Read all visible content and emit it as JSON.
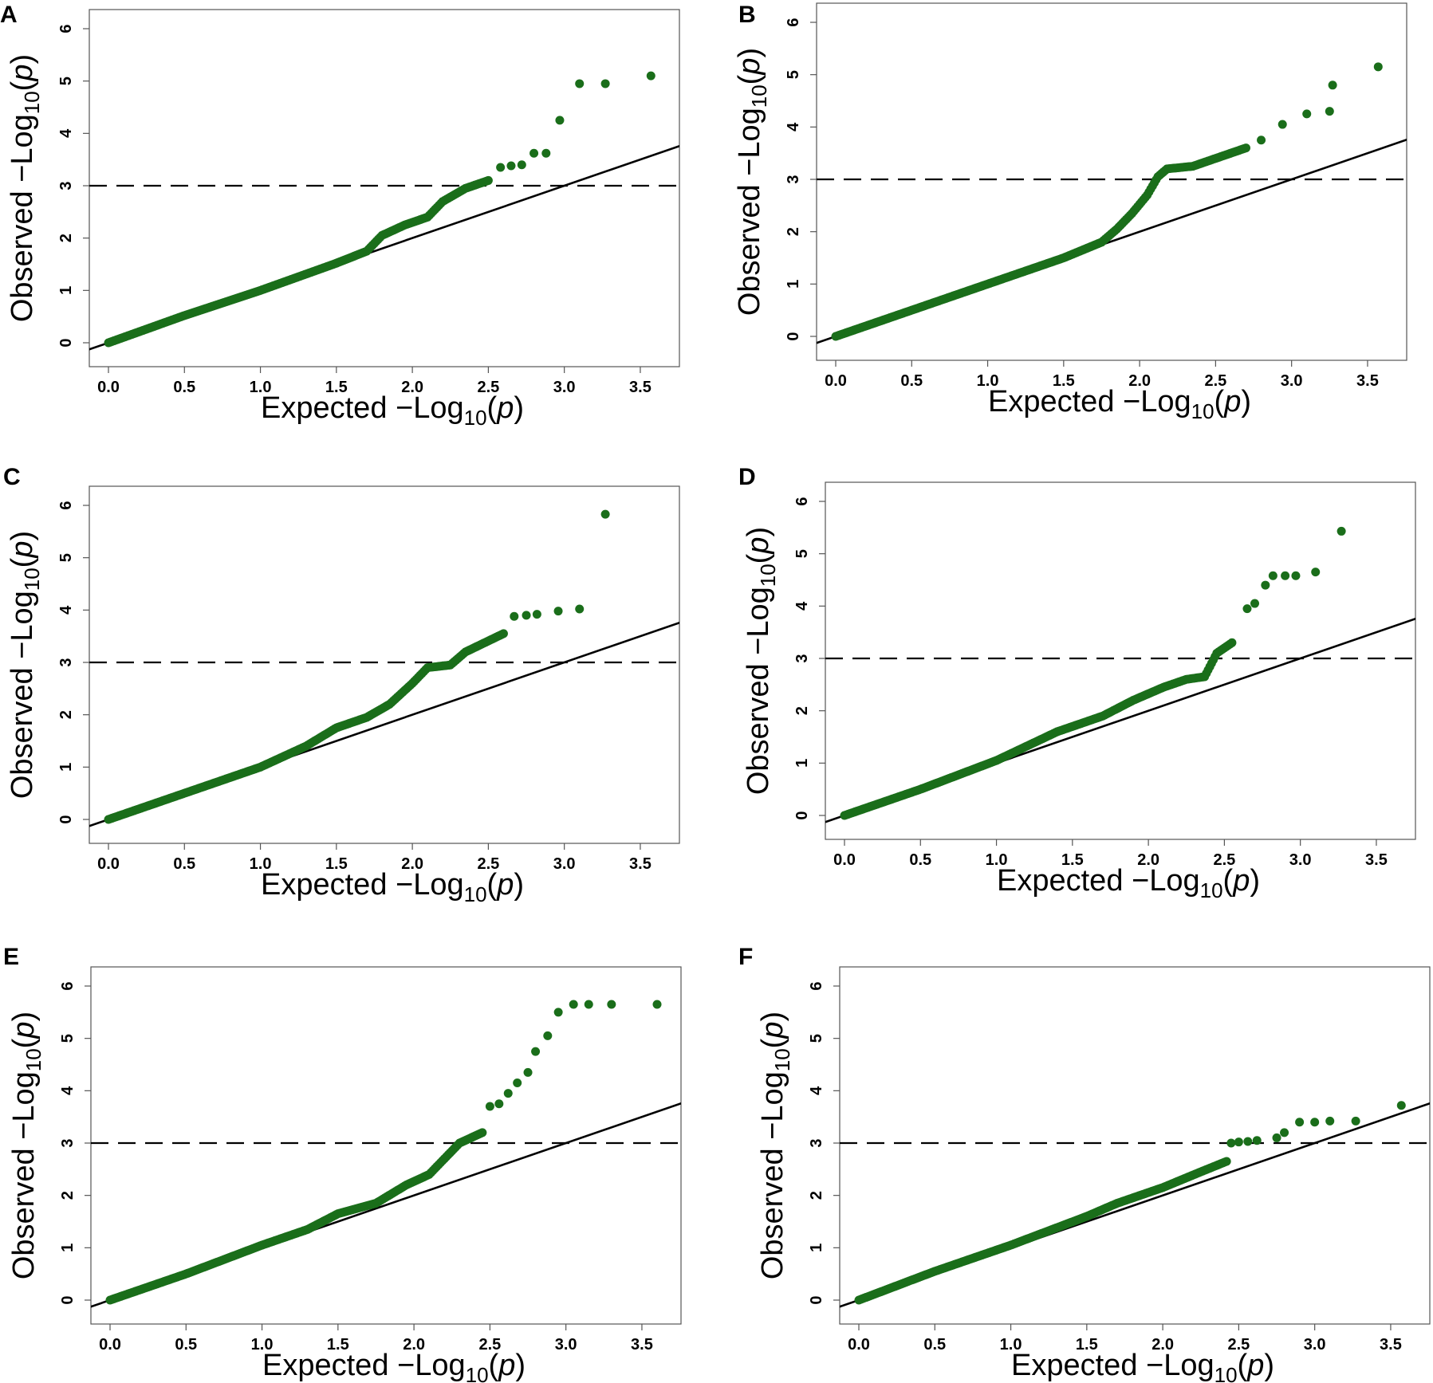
{
  "chart_data": [
    {
      "panel": "A",
      "type": "scatter",
      "xlabel": "Expected",
      "ylabel": "Observed",
      "log_label": "−Log",
      "log_sub": "10",
      "p_symbol": "p",
      "xlim": [
        0,
        3.6
      ],
      "ylim": [
        0,
        6
      ],
      "xticks": [
        "0.0",
        "0.5",
        "1.0",
        "1.5",
        "2.0",
        "2.5",
        "3.0",
        "3.5"
      ],
      "yticks": [
        "0",
        "1",
        "2",
        "3",
        "4",
        "5",
        "6"
      ],
      "threshold": 3,
      "curve": [
        [
          0,
          0
        ],
        [
          0.5,
          0.52
        ],
        [
          1,
          1
        ],
        [
          1.5,
          1.52
        ],
        [
          1.7,
          1.75
        ],
        [
          1.8,
          2.05
        ],
        [
          1.95,
          2.25
        ],
        [
          2.1,
          2.4
        ],
        [
          2.2,
          2.7
        ],
        [
          2.35,
          2.95
        ],
        [
          2.5,
          3.1
        ]
      ],
      "outliers": [
        [
          2.58,
          3.35
        ],
        [
          2.65,
          3.38
        ],
        [
          2.72,
          3.4
        ],
        [
          2.8,
          3.62
        ],
        [
          2.88,
          3.62
        ],
        [
          2.97,
          4.25
        ],
        [
          3.1,
          4.95
        ],
        [
          3.27,
          4.95
        ],
        [
          3.57,
          5.1
        ]
      ]
    },
    {
      "panel": "B",
      "type": "scatter",
      "xlabel": "Expected",
      "ylabel": "Observed",
      "log_label": "−Log",
      "log_sub": "10",
      "p_symbol": "p",
      "xlim": [
        0,
        3.6
      ],
      "ylim": [
        0,
        6
      ],
      "xticks": [
        "0.0",
        "0.5",
        "1.0",
        "1.5",
        "2.0",
        "2.5",
        "3.0",
        "3.5"
      ],
      "yticks": [
        "0",
        "1",
        "2",
        "3",
        "4",
        "5",
        "6"
      ],
      "threshold": 3,
      "curve": [
        [
          0,
          0
        ],
        [
          0.5,
          0.5
        ],
        [
          1,
          1
        ],
        [
          1.5,
          1.5
        ],
        [
          1.75,
          1.8
        ],
        [
          1.85,
          2.05
        ],
        [
          1.95,
          2.35
        ],
        [
          2.05,
          2.7
        ],
        [
          2.12,
          3.05
        ],
        [
          2.18,
          3.2
        ],
        [
          2.35,
          3.25
        ],
        [
          2.5,
          3.4
        ],
        [
          2.7,
          3.6
        ]
      ],
      "outliers": [
        [
          2.8,
          3.75
        ],
        [
          2.94,
          4.05
        ],
        [
          3.1,
          4.25
        ],
        [
          3.25,
          4.3
        ],
        [
          3.27,
          4.8
        ],
        [
          3.57,
          5.15
        ]
      ]
    },
    {
      "panel": "C",
      "type": "scatter",
      "xlabel": "Expected",
      "ylabel": "Observed",
      "log_label": "−Log",
      "log_sub": "10",
      "p_symbol": "p",
      "xlim": [
        0,
        3.6
      ],
      "ylim": [
        0,
        6
      ],
      "xticks": [
        "0.0",
        "0.5",
        "1.0",
        "1.5",
        "2.0",
        "2.5",
        "3.0",
        "3.5"
      ],
      "yticks": [
        "0",
        "1",
        "2",
        "3",
        "4",
        "5",
        "6"
      ],
      "threshold": 3,
      "curve": [
        [
          0,
          0
        ],
        [
          0.5,
          0.5
        ],
        [
          1,
          1
        ],
        [
          1.3,
          1.4
        ],
        [
          1.5,
          1.75
        ],
        [
          1.7,
          1.95
        ],
        [
          1.85,
          2.2
        ],
        [
          2,
          2.6
        ],
        [
          2.1,
          2.9
        ],
        [
          2.25,
          2.95
        ],
        [
          2.35,
          3.2
        ],
        [
          2.6,
          3.55
        ]
      ],
      "outliers": [
        [
          2.67,
          3.88
        ],
        [
          2.75,
          3.9
        ],
        [
          2.82,
          3.92
        ],
        [
          2.96,
          3.98
        ],
        [
          3.1,
          4.02
        ],
        [
          3.27,
          5.83
        ]
      ]
    },
    {
      "panel": "D",
      "type": "scatter",
      "xlabel": "Expected",
      "ylabel": "Observed",
      "log_label": "−Log",
      "log_sub": "10",
      "p_symbol": "p",
      "xlim": [
        0,
        3.6
      ],
      "ylim": [
        0,
        6
      ],
      "xticks": [
        "0.0",
        "0.5",
        "1.0",
        "1.5",
        "2.0",
        "2.5",
        "3.0",
        "3.5"
      ],
      "yticks": [
        "0",
        "1",
        "2",
        "3",
        "4",
        "5",
        "6"
      ],
      "threshold": 3,
      "curve": [
        [
          0,
          0
        ],
        [
          0.5,
          0.5
        ],
        [
          1,
          1.05
        ],
        [
          1.4,
          1.6
        ],
        [
          1.7,
          1.9
        ],
        [
          1.9,
          2.2
        ],
        [
          2.1,
          2.45
        ],
        [
          2.25,
          2.6
        ],
        [
          2.37,
          2.65
        ],
        [
          2.45,
          3.1
        ],
        [
          2.55,
          3.3
        ]
      ],
      "outliers": [
        [
          2.65,
          3.95
        ],
        [
          2.7,
          4.05
        ],
        [
          2.77,
          4.4
        ],
        [
          2.82,
          4.58
        ],
        [
          2.9,
          4.58
        ],
        [
          2.97,
          4.58
        ],
        [
          3.1,
          4.65
        ],
        [
          3.27,
          5.43
        ]
      ]
    },
    {
      "panel": "E",
      "type": "scatter",
      "xlabel": "Expected",
      "ylabel": "Observed",
      "log_label": "−Log",
      "log_sub": "10",
      "p_symbol": "p",
      "xlim": [
        0,
        3.6
      ],
      "ylim": [
        0,
        6
      ],
      "xticks": [
        "0.0",
        "0.5",
        "1.0",
        "1.5",
        "2.0",
        "2.5",
        "3.0",
        "3.5"
      ],
      "yticks": [
        "0",
        "1",
        "2",
        "3",
        "4",
        "5",
        "6"
      ],
      "threshold": 3,
      "curve": [
        [
          0,
          0
        ],
        [
          0.5,
          0.5
        ],
        [
          1,
          1.05
        ],
        [
          1.3,
          1.35
        ],
        [
          1.5,
          1.65
        ],
        [
          1.75,
          1.85
        ],
        [
          1.95,
          2.2
        ],
        [
          2.1,
          2.4
        ],
        [
          2.2,
          2.7
        ],
        [
          2.3,
          3.0
        ],
        [
          2.45,
          3.2
        ]
      ],
      "outliers": [
        [
          2.5,
          3.7
        ],
        [
          2.56,
          3.75
        ],
        [
          2.62,
          3.95
        ],
        [
          2.68,
          4.15
        ],
        [
          2.75,
          4.35
        ],
        [
          2.8,
          4.75
        ],
        [
          2.88,
          5.05
        ],
        [
          2.95,
          5.5
        ],
        [
          3.05,
          5.65
        ],
        [
          3.15,
          5.65
        ],
        [
          3.3,
          5.65
        ],
        [
          3.6,
          5.65
        ]
      ]
    },
    {
      "panel": "F",
      "type": "scatter",
      "xlabel": "Expected",
      "ylabel": "Observed",
      "log_label": "−Log",
      "log_sub": "10",
      "p_symbol": "p",
      "xlim": [
        0,
        3.6
      ],
      "ylim": [
        0,
        6
      ],
      "xticks": [
        "0.0",
        "0.5",
        "1.0",
        "1.5",
        "2.0",
        "2.5",
        "3.0",
        "3.5"
      ],
      "yticks": [
        "0",
        "1",
        "2",
        "3",
        "4",
        "5",
        "6"
      ],
      "threshold": 3,
      "curve": [
        [
          0,
          0
        ],
        [
          0.5,
          0.55
        ],
        [
          1,
          1.05
        ],
        [
          1.5,
          1.6
        ],
        [
          1.7,
          1.85
        ],
        [
          2,
          2.15
        ],
        [
          2.25,
          2.45
        ],
        [
          2.42,
          2.65
        ]
      ],
      "outliers": [
        [
          2.45,
          3.0
        ],
        [
          2.5,
          3.02
        ],
        [
          2.56,
          3.03
        ],
        [
          2.62,
          3.05
        ],
        [
          2.75,
          3.1
        ],
        [
          2.8,
          3.2
        ],
        [
          2.9,
          3.4
        ],
        [
          3.0,
          3.4
        ],
        [
          3.1,
          3.42
        ],
        [
          3.27,
          3.42
        ],
        [
          3.57,
          3.72
        ]
      ]
    }
  ]
}
